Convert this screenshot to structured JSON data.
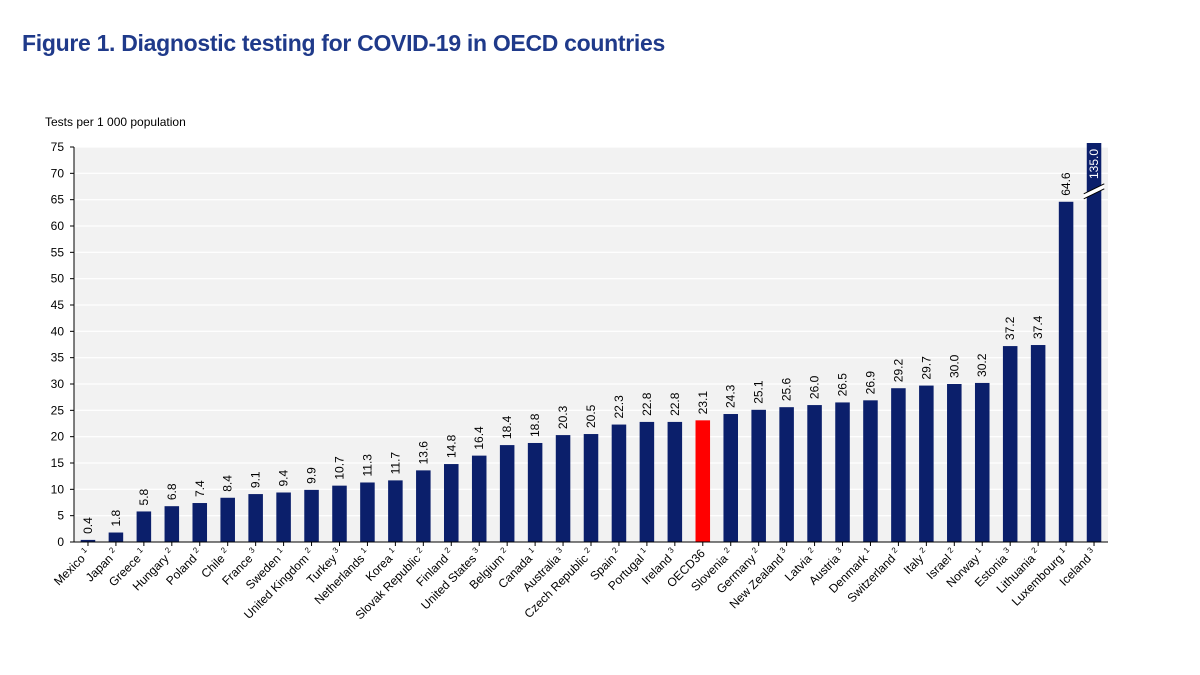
{
  "figure_title": "Figure 1. Diagnostic testing for COVID-19 in OECD countries",
  "colors": {
    "bar": "#0b1f6b",
    "highlight": "#ff0000",
    "title": "#1f3a8a",
    "plot_bg": "#f2f2f2",
    "grid": "#ffffff"
  },
  "chart_data": {
    "type": "bar",
    "title": "Figure 1. Diagnostic testing for COVID-19 in OECD countries",
    "ylabel": "Tests per 1 000 population",
    "xlabel": "",
    "ylim": [
      0,
      75
    ],
    "yticks": [
      0,
      5,
      10,
      15,
      20,
      25,
      30,
      35,
      40,
      45,
      50,
      55,
      60,
      65,
      70,
      75
    ],
    "grid": "horizontal",
    "highlight_category": "OECD36",
    "categories": [
      "Mexico",
      "Japan",
      "Greece",
      "Hungary",
      "Poland",
      "Chile",
      "France",
      "Sweden",
      "United Kingdom",
      "Turkey",
      "Netherlands",
      "Korea",
      "Slovak Republic",
      "Finland",
      "United States",
      "Belgium",
      "Canada",
      "Australia",
      "Czech Republic",
      "Spain",
      "Portugal",
      "Ireland",
      "OECD36",
      "Slovenia",
      "Germany",
      "New Zealand",
      "Latvia",
      "Austria",
      "Denmark",
      "Switzerland",
      "Italy",
      "Israel",
      "Norway",
      "Estonia",
      "Lithuania",
      "Luxembourg",
      "Iceland"
    ],
    "footnotes": [
      "1",
      "2",
      "1",
      "2",
      "2",
      "2",
      "3",
      "1",
      "2",
      "3",
      "1",
      "1",
      "2",
      "2",
      "3",
      "2",
      "1",
      "3",
      "2",
      "2",
      "1",
      "3",
      "",
      "2",
      "2",
      "3",
      "2",
      "3",
      "1",
      "2",
      "2",
      "2",
      "1",
      "3",
      "2",
      "1",
      "3"
    ],
    "values": [
      0.4,
      1.8,
      5.8,
      6.8,
      7.4,
      8.4,
      9.1,
      9.4,
      9.9,
      10.7,
      11.3,
      11.7,
      13.6,
      14.8,
      16.4,
      18.4,
      18.8,
      20.3,
      20.5,
      22.3,
      22.8,
      22.8,
      23.1,
      24.3,
      25.1,
      25.6,
      26.0,
      26.5,
      26.9,
      29.2,
      29.7,
      30.0,
      30.2,
      37.2,
      37.4,
      64.6,
      135.0
    ],
    "value_labels": [
      "0.4",
      "1.8",
      "5.8",
      "6.8",
      "7.4",
      "8.4",
      "9.1",
      "9.4",
      "9.9",
      "10.7",
      "11.3",
      "11.7",
      "13.6",
      "14.8",
      "16.4",
      "18.4",
      "18.8",
      "20.3",
      "20.5",
      "22.3",
      "22.8",
      "22.8",
      "23.1",
      "24.3",
      "25.1",
      "25.6",
      "26.0",
      "26.5",
      "26.9",
      "29.2",
      "29.7",
      "30.0",
      "30.2",
      "37.2",
      "37.4",
      "64.6",
      "135.0"
    ],
    "axis_break": {
      "category": "Iceland",
      "note": "bar exceeds axis maximum; broken with break mark"
    }
  }
}
